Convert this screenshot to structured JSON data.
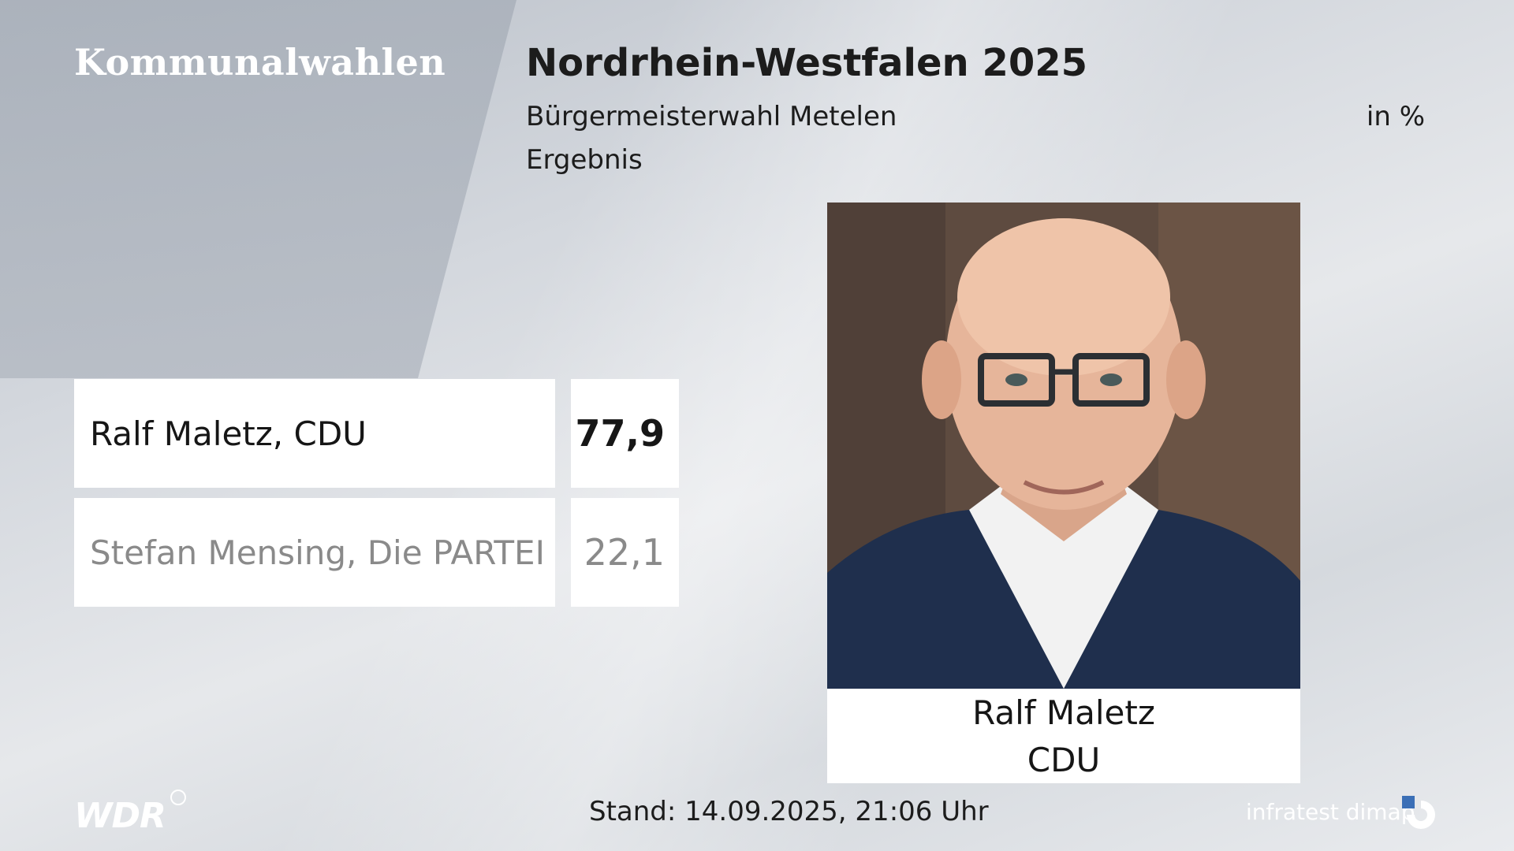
{
  "header": {
    "brand": "Kommunalwahlen",
    "title": "Nordrhein-Westfalen 2025",
    "subtitle": "Bürgermeisterwahl Metelen",
    "unit": "in %",
    "subline": "Ergebnis"
  },
  "results": [
    {
      "name": "Ralf Maletz, CDU",
      "value": "77,9"
    },
    {
      "name": "Stefan Mensing, Die PARTEI",
      "value": "22,1"
    }
  ],
  "winner_card": {
    "name": "Ralf Maletz",
    "party": "CDU"
  },
  "footer": {
    "broadcaster": "WDR",
    "stand": "Stand: 14.09.2025, 21:06 Uhr",
    "institute": "infratest dimap"
  },
  "colors": {
    "winner_text": "#161616",
    "loser_text": "#8a8a8a",
    "box": "#ffffff"
  }
}
